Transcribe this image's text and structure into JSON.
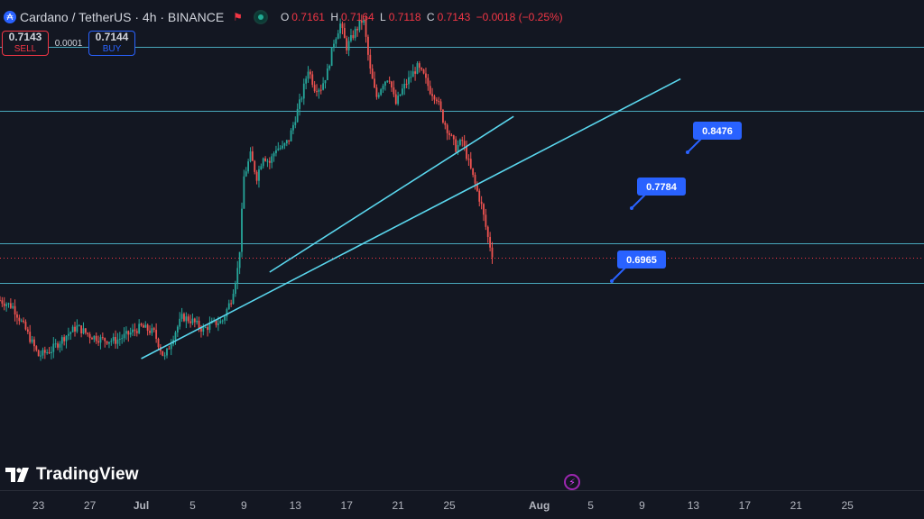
{
  "header": {
    "symbol": "Cardano / TetherUS · 4h · BINANCE",
    "symbol_icon": "₳",
    "open_label": "O",
    "open": "0.7161",
    "high_label": "H",
    "high": "0.7164",
    "low_label": "L",
    "low": "0.7118",
    "close_label": "C",
    "close": "0.7143",
    "change": "−0.0018 (−0.25%)"
  },
  "trade": {
    "sell_price": "0.7143",
    "sell_label": "SELL",
    "spread": "0.0001",
    "buy_price": "0.7144",
    "buy_label": "BUY"
  },
  "logo_text": "TradingView",
  "colors": {
    "background": "#131722",
    "up": "#26a69a",
    "down": "#ef5350",
    "lines": "#5ad7ee",
    "callout": "#2962ff",
    "current_price": "#f23645"
  },
  "chart_data": {
    "type": "candlestick",
    "x_tick_labels": [
      "23",
      "27",
      "Jul",
      "5",
      "9",
      "13",
      "17",
      "21",
      "25",
      "Aug",
      "5",
      "9",
      "13",
      "17",
      "21",
      "25"
    ],
    "price_path": [
      [
        0,
        0.6845
      ],
      [
        1,
        0.68
      ],
      [
        2,
        0.664
      ],
      [
        3,
        0.646
      ],
      [
        4,
        0.65
      ],
      [
        5,
        0.659
      ],
      [
        6,
        0.666
      ],
      [
        7,
        0.66
      ],
      [
        8,
        0.657
      ],
      [
        9,
        0.6565
      ],
      [
        10,
        0.661
      ],
      [
        11,
        0.666
      ],
      [
        12,
        0.662
      ],
      [
        12.8,
        0.644
      ],
      [
        13.5,
        0.66
      ],
      [
        14.2,
        0.673
      ],
      [
        15,
        0.67
      ],
      [
        15.8,
        0.664
      ],
      [
        16.5,
        0.668
      ],
      [
        17.3,
        0.67
      ],
      [
        18,
        0.685
      ],
      [
        18.6,
        0.71
      ],
      [
        19,
        0.77
      ],
      [
        19.5,
        0.785
      ],
      [
        20,
        0.77
      ],
      [
        20.5,
        0.785
      ],
      [
        21,
        0.78
      ],
      [
        21.5,
        0.79
      ],
      [
        22,
        0.79
      ],
      [
        22.5,
        0.796
      ],
      [
        23,
        0.811
      ],
      [
        23.5,
        0.826
      ],
      [
        24,
        0.845
      ],
      [
        24.5,
        0.832
      ],
      [
        25,
        0.832
      ],
      [
        25.5,
        0.843
      ],
      [
        26,
        0.864
      ],
      [
        26.5,
        0.876
      ],
      [
        27,
        0.86
      ],
      [
        27.6,
        0.87
      ],
      [
        28.3,
        0.88
      ],
      [
        28.8,
        0.845
      ],
      [
        29.3,
        0.825
      ],
      [
        29.8,
        0.835
      ],
      [
        30.3,
        0.84
      ],
      [
        30.8,
        0.82
      ],
      [
        31.3,
        0.83
      ],
      [
        32,
        0.84
      ],
      [
        32.5,
        0.846
      ],
      [
        33,
        0.84
      ],
      [
        33.5,
        0.83
      ],
      [
        34,
        0.825
      ],
      [
        34.5,
        0.81
      ],
      [
        35,
        0.8
      ],
      [
        35.5,
        0.79
      ],
      [
        36,
        0.795
      ],
      [
        36.5,
        0.78
      ],
      [
        37,
        0.765
      ],
      [
        37.5,
        0.75
      ],
      [
        38,
        0.728
      ],
      [
        38.4,
        0.7143
      ]
    ],
    "trendlines": [
      {
        "start": [
          "Jun 30",
          0.644
        ],
        "end": [
          "Aug 11",
          0.838
        ]
      },
      {
        "start": [
          "Jul 10",
          0.704
        ],
        "end": [
          "Jul 29",
          0.812
        ]
      }
    ],
    "horizontal_levels": [
      0.922,
      0.898,
      0.86,
      0.816,
      0.724,
      0.6965
    ],
    "current_price": 0.7143,
    "callouts": [
      {
        "label": "0.8476",
        "level": 0.8476
      },
      {
        "label": "0.7784",
        "level": 0.7784
      },
      {
        "label": "0.6965",
        "level": 0.6965
      }
    ]
  }
}
